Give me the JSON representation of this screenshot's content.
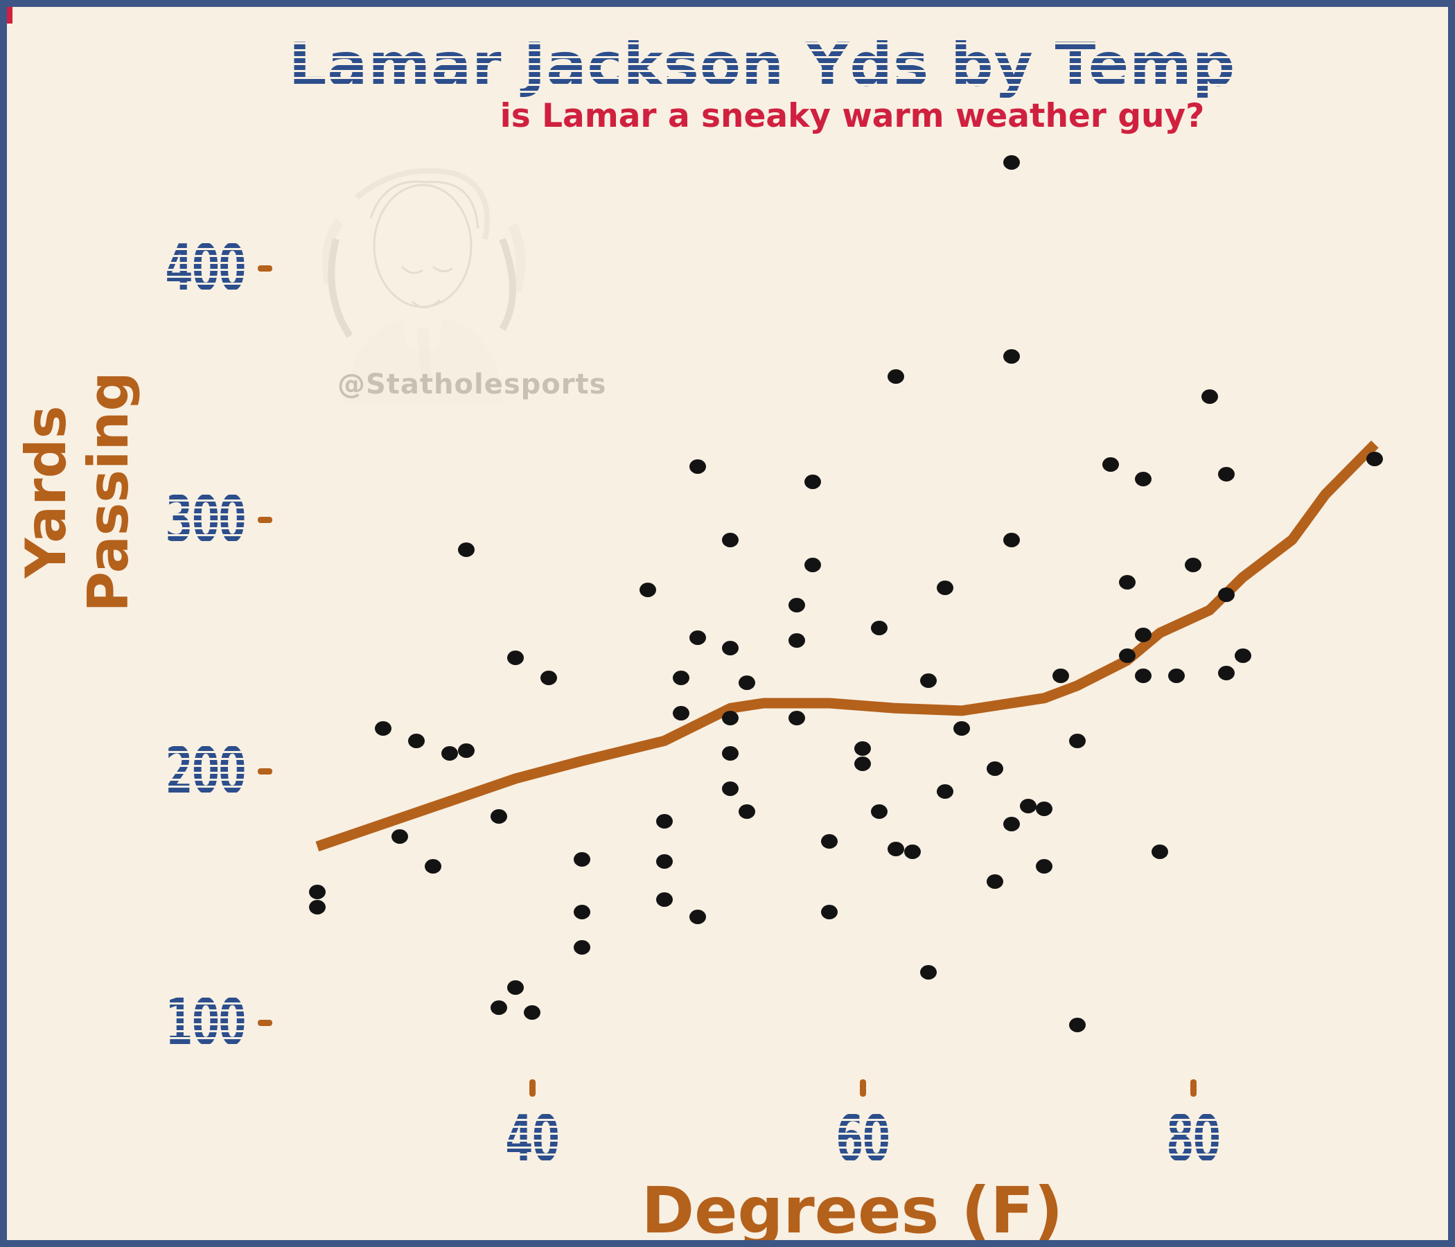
{
  "header": {
    "title": "Lamar Jackson Yds by Temp",
    "subtitle": "is Lamar a sneaky warm weather guy?"
  },
  "watermark": {
    "handle": "@Statholesports",
    "image": "faint-pencil-sketch-portrait"
  },
  "chart_data": {
    "type": "scatter",
    "title": "Lamar Jackson Yds by Temp",
    "subtitle": "is Lamar a sneaky warm weather guy?",
    "xlabel": "Degrees (F)",
    "ylabel_line1": "Yards",
    "ylabel_line2": "Passing",
    "x_ticks": [
      40,
      60,
      80
    ],
    "y_ticks": [
      400,
      300,
      200,
      100
    ],
    "xlim": [
      20,
      95
    ],
    "ylim": [
      85,
      465
    ],
    "grid": false,
    "legend": "none",
    "points_series_name": "games",
    "points": [
      [
        69,
        442
      ],
      [
        62,
        357
      ],
      [
        69,
        365
      ],
      [
        50,
        321
      ],
      [
        57,
        315
      ],
      [
        52,
        292
      ],
      [
        57,
        282
      ],
      [
        47,
        272
      ],
      [
        65,
        273
      ],
      [
        56,
        266
      ],
      [
        69,
        292
      ],
      [
        36,
        288
      ],
      [
        81,
        349
      ],
      [
        75,
        322
      ],
      [
        77,
        316
      ],
      [
        82,
        318
      ],
      [
        91,
        324
      ],
      [
        80,
        282
      ],
      [
        76,
        275
      ],
      [
        82,
        270
      ],
      [
        39,
        245
      ],
      [
        41,
        237
      ],
      [
        31,
        217
      ],
      [
        33,
        212
      ],
      [
        35,
        207
      ],
      [
        36,
        208
      ],
      [
        32,
        174
      ],
      [
        38,
        182
      ],
      [
        34,
        162
      ],
      [
        27,
        152
      ],
      [
        27,
        146
      ],
      [
        43,
        165
      ],
      [
        43,
        144
      ],
      [
        43,
        130
      ],
      [
        39,
        114
      ],
      [
        38,
        106
      ],
      [
        40,
        104
      ],
      [
        50,
        253
      ],
      [
        52,
        249
      ],
      [
        56,
        252
      ],
      [
        61,
        257
      ],
      [
        49,
        237
      ],
      [
        53,
        235
      ],
      [
        64,
        236
      ],
      [
        49,
        223
      ],
      [
        52,
        221
      ],
      [
        56,
        221
      ],
      [
        66,
        217
      ],
      [
        60,
        209
      ],
      [
        60,
        203
      ],
      [
        52,
        207
      ],
      [
        52,
        193
      ],
      [
        53,
        184
      ],
      [
        68,
        201
      ],
      [
        65,
        192
      ],
      [
        61,
        184
      ],
      [
        70,
        186
      ],
      [
        69,
        179
      ],
      [
        48,
        180
      ],
      [
        48,
        164
      ],
      [
        48,
        149
      ],
      [
        50,
        142
      ],
      [
        58,
        172
      ],
      [
        62,
        169
      ],
      [
        63,
        168
      ],
      [
        68,
        156
      ],
      [
        58,
        144
      ],
      [
        64,
        120
      ],
      [
        72,
        238
      ],
      [
        76,
        246
      ],
      [
        77,
        254
      ],
      [
        77,
        238
      ],
      [
        79,
        238
      ],
      [
        82,
        239
      ],
      [
        83,
        246
      ],
      [
        73,
        212
      ],
      [
        71,
        185
      ],
      [
        71,
        162
      ],
      [
        78,
        168
      ],
      [
        73,
        99
      ]
    ],
    "trend_line": {
      "name": "smoothed trend (loess)",
      "points": [
        [
          27,
          170
        ],
        [
          31,
          179
        ],
        [
          35,
          188
        ],
        [
          39,
          197
        ],
        [
          43,
          204
        ],
        [
          48,
          212
        ],
        [
          52,
          225
        ],
        [
          54,
          227
        ],
        [
          58,
          227
        ],
        [
          62,
          225
        ],
        [
          66,
          224
        ],
        [
          71,
          229
        ],
        [
          73,
          234
        ],
        [
          76,
          244
        ],
        [
          78,
          255
        ],
        [
          81,
          264
        ],
        [
          83,
          277
        ],
        [
          86,
          292
        ],
        [
          88,
          310
        ],
        [
          91,
          330
        ]
      ]
    },
    "colors": {
      "background": "#f8f0e3",
      "frame_border": "#3e5685",
      "title": "#2c4e8c",
      "subtitle": "#d0203f",
      "axis_orange": "#b4611c",
      "tick_label_blue": "#2c4e8c",
      "point_black": "#131313",
      "trend_orange": "#b4611c",
      "watermark_gray": "#c8c0b3"
    }
  }
}
